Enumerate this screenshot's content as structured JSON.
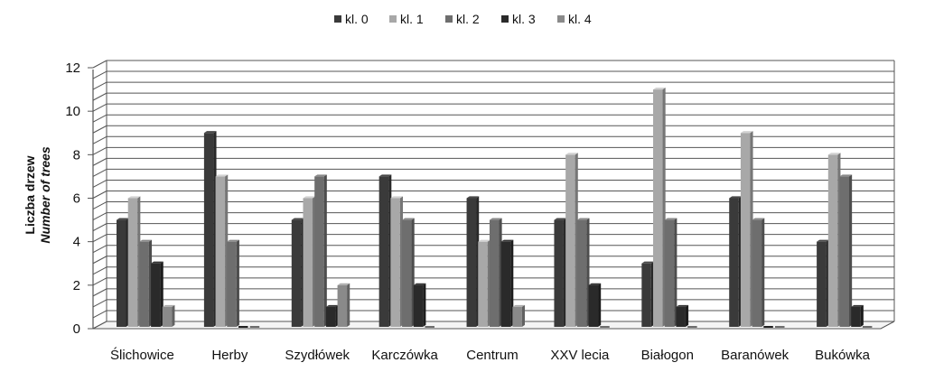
{
  "chart_data": {
    "type": "bar",
    "title": "",
    "ylabel": "Liczba drzew",
    "ylabel_en": "Number of trees",
    "xlabel": "",
    "ylim": [
      0,
      12
    ],
    "yticks": [
      "0",
      "2",
      "4",
      "6",
      "8",
      "10",
      "12"
    ],
    "grid": true,
    "legend_position": "top-center",
    "categories": [
      "Ślichowice",
      "Herby",
      "Szydłówek",
      "Karczówka",
      "Centrum",
      "XXV lecia",
      "Białogon",
      "Baranówek",
      "Bukówka"
    ],
    "series": [
      {
        "name": "kl. 0",
        "color": "#3a3a3a",
        "values": [
          5,
          9,
          5,
          7,
          6,
          5,
          3,
          6,
          4
        ]
      },
      {
        "name": "kl. 1",
        "color": "#a8a8a8",
        "values": [
          6,
          7,
          6,
          6,
          4,
          8,
          11,
          9,
          8
        ]
      },
      {
        "name": "kl. 2",
        "color": "#6e6e6e",
        "values": [
          4,
          4,
          7,
          5,
          5,
          5,
          5,
          5,
          7
        ]
      },
      {
        "name": "kl. 3",
        "color": "#2a2a2a",
        "values": [
          3,
          0,
          1,
          2,
          4,
          2,
          1,
          0,
          1
        ]
      },
      {
        "name": "kl. 4",
        "color": "#8a8a8a",
        "values": [
          1,
          0,
          2,
          0,
          1,
          0,
          0,
          0,
          0
        ]
      }
    ]
  }
}
